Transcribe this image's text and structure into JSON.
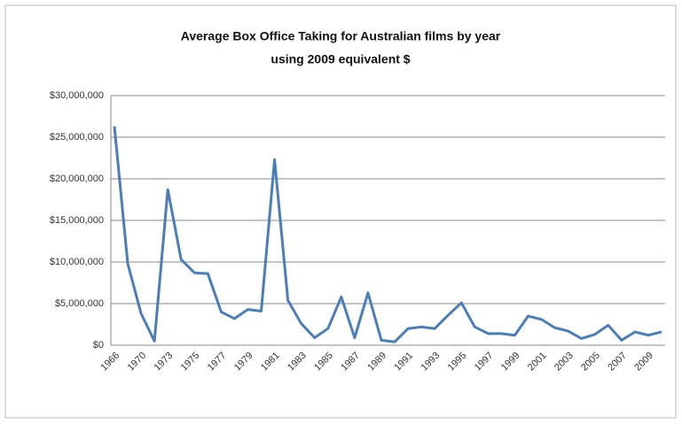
{
  "chart_data": {
    "type": "line",
    "title": "Average Box Office Taking for Australian films by year",
    "subtitle": "using 2009 equivalent $",
    "categories": [
      "1966",
      null,
      "1970",
      null,
      "1973",
      null,
      "1975",
      null,
      "1977",
      null,
      "1979",
      null,
      "1981",
      null,
      "1983",
      null,
      "1985",
      null,
      "1987",
      null,
      "1989",
      null,
      "1991",
      null,
      "1993",
      null,
      "1995",
      null,
      "1997",
      null,
      "1999",
      null,
      "2001",
      null,
      "2003",
      null,
      "2005",
      null,
      "2007",
      null,
      "2009",
      null
    ],
    "series": [
      {
        "name": "Average Box Office",
        "color": "#4a7ebb",
        "values": [
          26300000,
          9800000,
          3800000,
          500000,
          18700000,
          10300000,
          8700000,
          8600000,
          4000000,
          3200000,
          4300000,
          4100000,
          22300000,
          5400000,
          2600000,
          900000,
          2000000,
          5800000,
          900000,
          6300000,
          600000,
          400000,
          2000000,
          2200000,
          2000000,
          3600000,
          5100000,
          2200000,
          1400000,
          1400000,
          1200000,
          3500000,
          3100000,
          2100000,
          1700000,
          800000,
          1300000,
          2400000,
          600000,
          1600000,
          1200000,
          1600000
        ]
      }
    ],
    "ylim": [
      0,
      30000000
    ],
    "yticks": [
      {
        "value": 0,
        "label": "$0"
      },
      {
        "value": 5000000,
        "label": "$5,000,000"
      },
      {
        "value": 10000000,
        "label": "$10,000,000"
      },
      {
        "value": 15000000,
        "label": "$15,000,000"
      },
      {
        "value": 20000000,
        "label": "$20,000,000"
      },
      {
        "value": 25000000,
        "label": "$25,000,000"
      },
      {
        "value": 30000000,
        "label": "$30,000,000"
      }
    ],
    "grid": true
  }
}
